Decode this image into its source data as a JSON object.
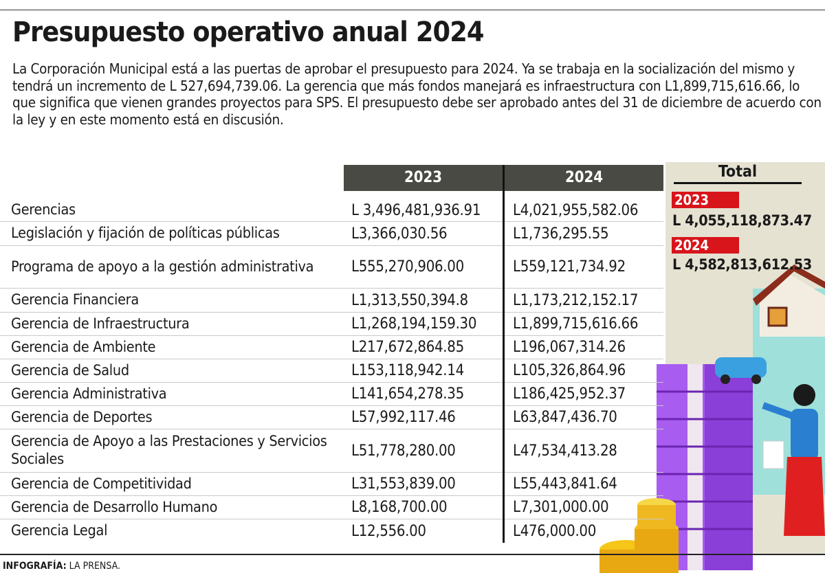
{
  "title": "Presupuesto operativo anual 2024",
  "intro": "La Corporación Municipal está a las puertas de aprobar el presupuesto para 2024. Ya se trabaja en la socialización del mismo y tendrá un incremento de L 527,694,739.06. La gerencia que más fondos manejará es infraestructura con L1,899,715,616.66, lo que significa que vienen grandes proyectos para SPS. El presupuesto debe ser aprobado antes del 31 de diciembre de acuerdo con la ley y en este momento está en discusión.",
  "table": {
    "headers": [
      "2023",
      "2024"
    ],
    "rows": [
      {
        "label": "Gerencias",
        "y2023": "L 3,496,481,936.91",
        "y2024": "L4,021,955,582.06"
      },
      {
        "label": "Legislación y fijación de políticas públicas",
        "y2023": "L3,366,030.56",
        "y2024": "L1,736,295.55"
      },
      {
        "label": "Programa de apoyo a la gestión administrativa",
        "y2023": "L555,270,906.00",
        "y2024": "L559,121,734.92"
      },
      {
        "label": "Gerencia Financiera",
        "y2023": "L1,313,550,394.8",
        "y2024": "L1,173,212,152.17"
      },
      {
        "label": "Gerencia de Infraestructura",
        "y2023": "L1,268,194,159.30",
        "y2024": "L1,899,715,616.66"
      },
      {
        "label": "Gerencia de Ambiente",
        "y2023": "L217,672,864.85",
        "y2024": "L196,067,314.26"
      },
      {
        "label": "Gerencia de Salud",
        "y2023": "L153,118,942.14",
        "y2024": "L105,326,864.96"
      },
      {
        "label": "Gerencia Administrativa",
        "y2023": "L141,654,278.35",
        "y2024": "L186,425,952.37"
      },
      {
        "label": "Gerencia de Deportes",
        "y2023": "L57,992,117.46",
        "y2024": "L63,847,436.70"
      },
      {
        "label": "Gerencia de Apoyo a las Prestaciones y Servicios Sociales",
        "y2023": "L51,778,280.00",
        "y2024": "L47,534,413.28"
      },
      {
        "label": "Gerencia de Competitividad",
        "y2023": "L31,553,839.00",
        "y2024": "L55,443,841.64"
      },
      {
        "label": "Gerencia de Desarrollo Humano",
        "y2023": "L8,168,700.00",
        "y2024": "L7,301,000.00"
      },
      {
        "label": "Gerencia Legal",
        "y2023": "L12,556.00",
        "y2024": "L476,000.00"
      }
    ]
  },
  "total": {
    "title": "Total",
    "items": [
      {
        "year": "2023",
        "value": "L 4,055,118,873.47"
      },
      {
        "year": "2024",
        "value": "L 4,582,813,612.53"
      }
    ]
  },
  "footer": {
    "label": "INFOGRAFÍA:",
    "source": "LA PRENSA."
  },
  "colors": {
    "header_bg": "#4a4a45",
    "accent_red": "#d7151b",
    "panel_bg": "#e5e2d2"
  }
}
